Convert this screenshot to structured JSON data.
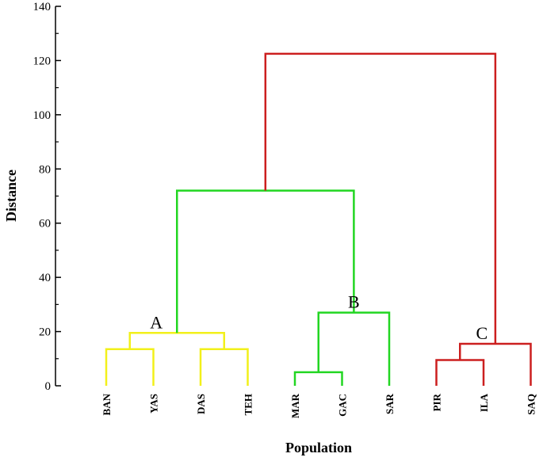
{
  "chart_data": {
    "type": "dendrogram",
    "xlabel": "Population",
    "ylabel": "Distance",
    "ylim": [
      0,
      140
    ],
    "yticks": [
      0,
      20,
      40,
      60,
      80,
      100,
      120,
      140
    ],
    "leaves": [
      "BAN",
      "YAS",
      "DAS",
      "TEH",
      "MAR",
      "GAC",
      "SAR",
      "PIR",
      "ILA",
      "SAQ"
    ],
    "colors": {
      "A": "#f2f01a",
      "B": "#22d622",
      "C": "#cc1f1f"
    },
    "merges": [
      {
        "left": "BAN",
        "right": "YAS",
        "height": 13.5,
        "color": "A"
      },
      {
        "left": "DAS",
        "right": "TEH",
        "height": 13.5,
        "color": "A"
      },
      {
        "left": "BAN+YAS",
        "right": "DAS+TEH",
        "height": 19.5,
        "color": "A"
      },
      {
        "left": "MAR",
        "right": "GAC",
        "height": 5,
        "color": "B"
      },
      {
        "left": "MAR+GAC",
        "right": "SAR",
        "height": 27,
        "color": "B"
      },
      {
        "left": "A",
        "right": "B",
        "height": 72,
        "color": "B"
      },
      {
        "left": "PIR",
        "right": "ILA",
        "height": 9.5,
        "color": "C"
      },
      {
        "left": "PIR+ILA",
        "right": "SAQ",
        "height": 15.5,
        "color": "C"
      },
      {
        "left": "A+B",
        "right": "C",
        "height": 122.5,
        "color": "C"
      }
    ],
    "clusters": [
      {
        "label": "A"
      },
      {
        "label": "B"
      },
      {
        "label": "C"
      }
    ]
  }
}
